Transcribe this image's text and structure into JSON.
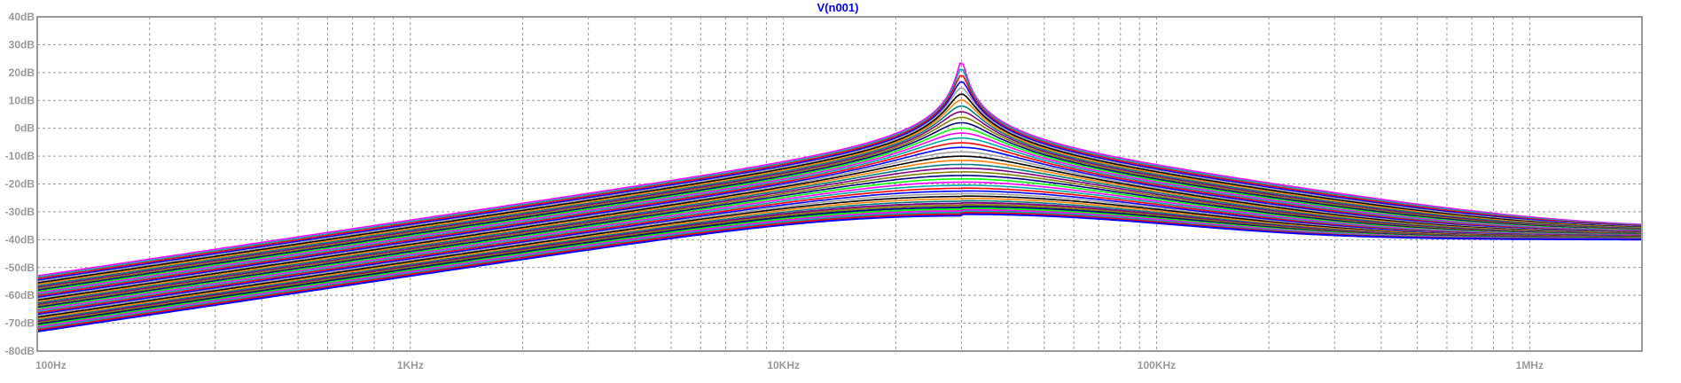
{
  "chart_data": {
    "type": "line",
    "title": "V(n001)",
    "xlabel": "",
    "ylabel": "",
    "x_scale": "log",
    "xlim": [
      100,
      2000000
    ],
    "ylim": [
      -80,
      40
    ],
    "grid": true,
    "x_tick_values": [
      100,
      1000,
      10000,
      100000,
      1000000
    ],
    "x_tick_labels": [
      "100Hz",
      "1KHz",
      "10KHz",
      "100KHz",
      "1MHz"
    ],
    "y_tick_values": [
      40,
      30,
      20,
      10,
      0,
      -10,
      -20,
      -30,
      -40,
      -50,
      -60,
      -70,
      -80
    ],
    "y_tick_labels": [
      "40dB",
      "30dB",
      "20dB",
      "10dB",
      "0dB",
      "-10dB",
      "-20dB",
      "-30dB",
      "-40dB",
      "-50dB",
      "-60dB",
      "-70dB",
      "-80dB"
    ],
    "colors": {
      "background": "#ffffff",
      "axis": "#999999",
      "grid": "#999999",
      "title": "#0000ff",
      "trace_palette": [
        "#0000ff",
        "#ff0000",
        "#00aaaa",
        "#ff00ff",
        "#00ff00",
        "#000080",
        "#808000",
        "#800080",
        "#008080",
        "#ff8000",
        "#000000",
        "#a0a0a0"
      ]
    },
    "resonance_frequency_hz": 30000,
    "sweep_count": 40,
    "representative_series": [
      {
        "x": [
          100,
          1000,
          10000,
          20000,
          30000,
          80000,
          300000,
          1000000,
          2000000
        ],
        "y": [
          -54,
          -37,
          -19,
          -8,
          29,
          -13,
          -29,
          -36,
          -36
        ]
      },
      {
        "x": [
          100,
          1000,
          10000,
          20000,
          40000,
          80000,
          300000,
          1000000,
          2000000
        ],
        "y": [
          -62,
          -44,
          -26,
          -16,
          -7,
          -13,
          -30,
          -37,
          -38
        ]
      },
      {
        "x": [
          100,
          1000,
          10000,
          30000,
          80000,
          300000,
          1000000,
          2000000
        ],
        "y": [
          -72,
          -54,
          -34,
          -25,
          -21,
          -29,
          -37,
          -39
        ]
      },
      {
        "x": [
          100,
          1000,
          10000,
          30000,
          80000,
          300000,
          1000000,
          2000000
        ],
        "y": [
          -77,
          -60,
          -39,
          -29,
          -24,
          -30,
          -38,
          -40
        ]
      }
    ]
  }
}
